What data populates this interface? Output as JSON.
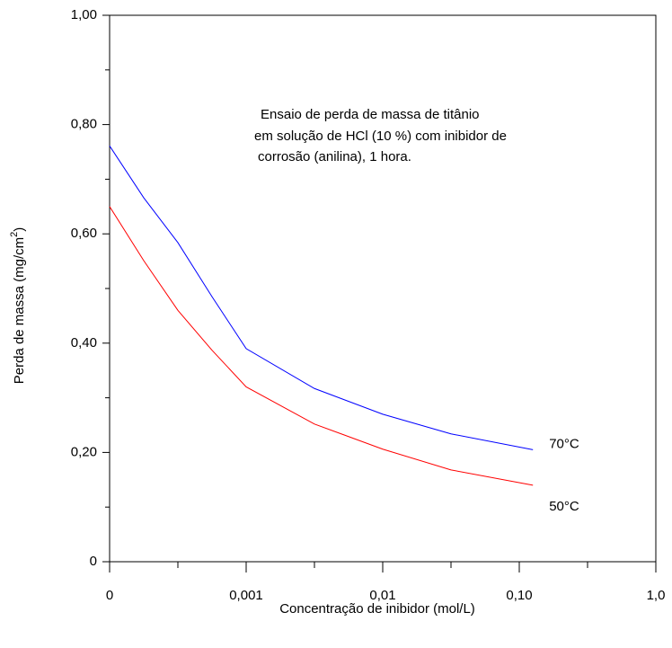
{
  "chart_data": {
    "type": "line",
    "annotation": [
      "Ensaio de perda de massa de titânio",
      "em solução de HCl (10 %) com inibidor de",
      "corrosão (anilina), 1 hora."
    ],
    "xlabel": "Concentração de inibidor (mol/L)",
    "ylabel": {
      "text": "Perda de massa (mg/cm",
      "sup": "2",
      "end": ")"
    },
    "x": [
      0,
      0.25,
      0.5,
      0.75,
      1.0,
      1.5,
      2.0,
      2.5,
      3.1
    ],
    "series": [
      {
        "name": "70°C",
        "color": "#0000ff",
        "values": [
          0.761,
          0.666,
          0.584,
          0.485,
          0.39,
          0.317,
          0.27,
          0.234,
          0.205
        ]
      },
      {
        "name": "50°C",
        "color": "#ff0000",
        "values": [
          0.65,
          0.551,
          0.46,
          0.387,
          0.32,
          0.252,
          0.206,
          0.168,
          0.14
        ]
      }
    ],
    "xlim": [
      0,
      4
    ],
    "xticks": [
      {
        "value": 0,
        "label": "0"
      },
      {
        "value": 1,
        "label": "0,001"
      },
      {
        "value": 2,
        "label": "0,01"
      },
      {
        "value": 3,
        "label": "0,10"
      },
      {
        "value": 4,
        "label": "1,0"
      }
    ],
    "xminorticks": [
      0.5,
      1.5,
      2.5,
      3.5
    ],
    "ylim": [
      0,
      1.0
    ],
    "yticks": [
      0,
      {
        "value": 0.2,
        "label": "0,20"
      },
      {
        "value": 0.4,
        "label": "0,40"
      },
      {
        "value": 0.6,
        "label": "0,60"
      },
      {
        "value": 0.8,
        "label": "0,80"
      },
      {
        "value": 1.0,
        "label": "1,00"
      }
    ],
    "yminorticks": [
      0.1,
      0.3,
      0.5,
      0.7,
      0.9
    ],
    "grid": false
  }
}
